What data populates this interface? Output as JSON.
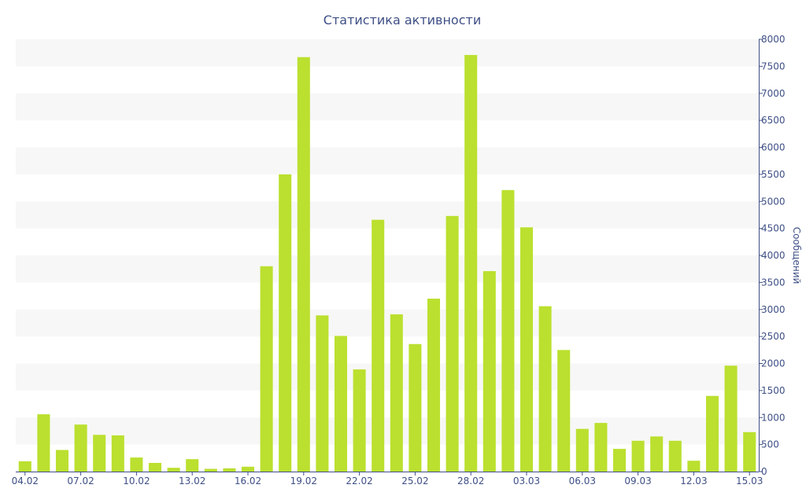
{
  "chart_data": {
    "type": "bar",
    "title": "Статистика активности",
    "ylabel": "Сообщений",
    "ylim": [
      0,
      8000
    ],
    "y_ticks": [
      0,
      500,
      1000,
      1500,
      2000,
      2500,
      3000,
      3500,
      4000,
      4500,
      5000,
      5500,
      6000,
      6500,
      7000,
      7500,
      8000
    ],
    "y_axis_side": "right",
    "x_tick_labels": [
      "04.02",
      "07.02",
      "10.02",
      "13.02",
      "16.02",
      "19.02",
      "22.02",
      "25.02",
      "28.02",
      "03.03",
      "06.03",
      "09.03",
      "12.03",
      "15.03"
    ],
    "x_tick_every": 3,
    "grid": "alternating horizontal bands",
    "bar_color": "#bbe02f",
    "band_color": "#f7f7f7",
    "text_color": "#3e4f86",
    "categories": [
      "04.02",
      "05.02",
      "06.02",
      "07.02",
      "08.02",
      "09.02",
      "10.02",
      "11.02",
      "12.02",
      "13.02",
      "14.02",
      "15.02",
      "16.02",
      "17.02",
      "18.02",
      "19.02",
      "20.02",
      "21.02",
      "22.02",
      "23.02",
      "24.02",
      "25.02",
      "26.02",
      "27.02",
      "28.02",
      "01.03",
      "02.03",
      "03.03",
      "04.03",
      "05.03",
      "06.03",
      "07.03",
      "08.03",
      "09.03",
      "10.03",
      "11.03",
      "12.03",
      "13.03",
      "14.03",
      "15.03"
    ],
    "values": [
      190,
      1060,
      400,
      870,
      680,
      670,
      260,
      160,
      70,
      230,
      50,
      60,
      90,
      3800,
      5500,
      7670,
      2890,
      2510,
      1890,
      4660,
      2910,
      2360,
      3200,
      4730,
      7710,
      3710,
      5210,
      4520,
      3060,
      2250,
      790,
      900,
      420,
      570,
      650,
      570,
      200,
      1400,
      1960,
      730
    ]
  }
}
